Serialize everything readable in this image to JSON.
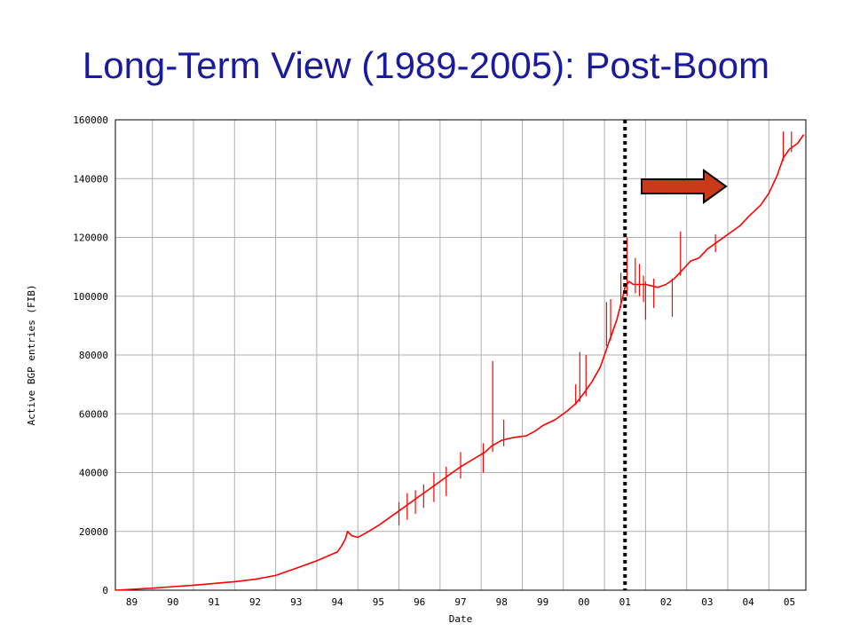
{
  "slide": {
    "title": "Long-Term View (1989-2005): Post-Boom"
  },
  "chart_data": {
    "type": "line",
    "xlabel": "Date",
    "ylabel": "Active BGP entries (FIB)",
    "x_ticks": [
      "89",
      "90",
      "91",
      "92",
      "93",
      "94",
      "95",
      "96",
      "97",
      "98",
      "99",
      "00",
      "01",
      "02",
      "03",
      "04",
      "05"
    ],
    "y_ticks": [
      "0",
      "20000",
      "40000",
      "60000",
      "80000",
      "100000",
      "120000",
      "140000",
      "160000"
    ],
    "xlim": [
      1988.6,
      2005.4
    ],
    "ylim": [
      0,
      160000
    ],
    "grid": true,
    "line_color": "#ff0000",
    "series": [
      {
        "x": [
          1988.6,
          1989.0,
          1989.5,
          1990.0,
          1990.5,
          1991.0,
          1991.5,
          1992.0,
          1992.5,
          1993.0,
          1993.5,
          1994.0,
          1994.1,
          1994.2,
          1994.25,
          1994.35,
          1994.5,
          1994.7,
          1995.0,
          1995.3,
          1995.6,
          1996.0,
          1996.3,
          1996.6,
          1997.0,
          1997.3,
          1997.6,
          1997.75,
          1998.0,
          1998.3,
          1998.6,
          1998.8,
          1999.0,
          1999.3,
          1999.6,
          1999.8,
          2000.0,
          2000.2,
          2000.4,
          2000.6,
          2000.8,
          2000.95,
          2001.0,
          2001.1,
          2001.2,
          2001.5,
          2001.8,
          2002.0,
          2002.2,
          2002.4,
          2002.6,
          2002.8,
          2003.0,
          2003.3,
          2003.6,
          2003.8,
          2004.0,
          2004.3,
          2004.5,
          2004.7,
          2004.85,
          2005.0,
          2005.2,
          2005.35
        ],
        "y": [
          0,
          300,
          700,
          1200,
          1700,
          2300,
          2900,
          3700,
          5000,
          7500,
          10000,
          13000,
          15000,
          17500,
          20000,
          18500,
          18000,
          19500,
          22000,
          25000,
          28000,
          32000,
          35000,
          38000,
          42000,
          44500,
          47000,
          49000,
          51000,
          52000,
          52500,
          54000,
          56000,
          58000,
          61000,
          63500,
          67000,
          71000,
          76000,
          84000,
          92000,
          100000,
          103000,
          105000,
          104000,
          104000,
          103000,
          104000,
          106000,
          109000,
          112000,
          113000,
          116000,
          119000,
          122000,
          124000,
          127000,
          131000,
          135000,
          141000,
          147000,
          150000,
          152000,
          155000
        ]
      }
    ],
    "spikes": [
      {
        "x": 1997.78,
        "low": 47000,
        "high": 78000
      },
      {
        "x": 1998.05,
        "low": 49000,
        "high": 58000
      },
      {
        "x": 1997.55,
        "low": 40000,
        "high": 50000
      },
      {
        "x": 1996.35,
        "low": 30000,
        "high": 40000
      },
      {
        "x": 1996.65,
        "low": 32000,
        "high": 42000
      },
      {
        "x": 1997.0,
        "low": 38000,
        "high": 47000
      },
      {
        "x": 1995.7,
        "low": 24000,
        "high": 33000
      },
      {
        "x": 1995.9,
        "low": 26000,
        "high": 34000
      },
      {
        "x": 1996.1,
        "low": 28000,
        "high": 36000
      },
      {
        "x": 1995.5,
        "low": 22000,
        "high": 30000
      },
      {
        "x": 1999.8,
        "low": 63000,
        "high": 70000
      },
      {
        "x": 1999.9,
        "low": 64000,
        "high": 81000
      },
      {
        "x": 2000.05,
        "low": 66000,
        "high": 80000
      },
      {
        "x": 2000.55,
        "low": 83000,
        "high": 98000
      },
      {
        "x": 2000.65,
        "low": 85000,
        "high": 99000
      },
      {
        "x": 2000.9,
        "low": 96000,
        "high": 108000
      },
      {
        "x": 2001.05,
        "low": 100000,
        "high": 120000
      },
      {
        "x": 2001.25,
        "low": 101000,
        "high": 113000
      },
      {
        "x": 2001.35,
        "low": 100000,
        "high": 111000
      },
      {
        "x": 2001.45,
        "low": 98000,
        "high": 107000
      },
      {
        "x": 2001.5,
        "low": 92000,
        "high": 105000
      },
      {
        "x": 2001.7,
        "low": 96000,
        "high": 106000
      },
      {
        "x": 2002.15,
        "low": 93000,
        "high": 106000
      },
      {
        "x": 2002.35,
        "low": 107000,
        "high": 122000
      },
      {
        "x": 2003.2,
        "low": 115000,
        "high": 121000
      },
      {
        "x": 2004.85,
        "low": 146000,
        "high": 156000
      },
      {
        "x": 2005.05,
        "low": 149000,
        "high": 156000
      }
    ],
    "marker": {
      "x": 2001.0,
      "style": "dotted",
      "color": "#000000"
    },
    "annotation": {
      "shape": "right-arrow",
      "fill": "#c83a1a",
      "stroke": "#000000"
    }
  }
}
